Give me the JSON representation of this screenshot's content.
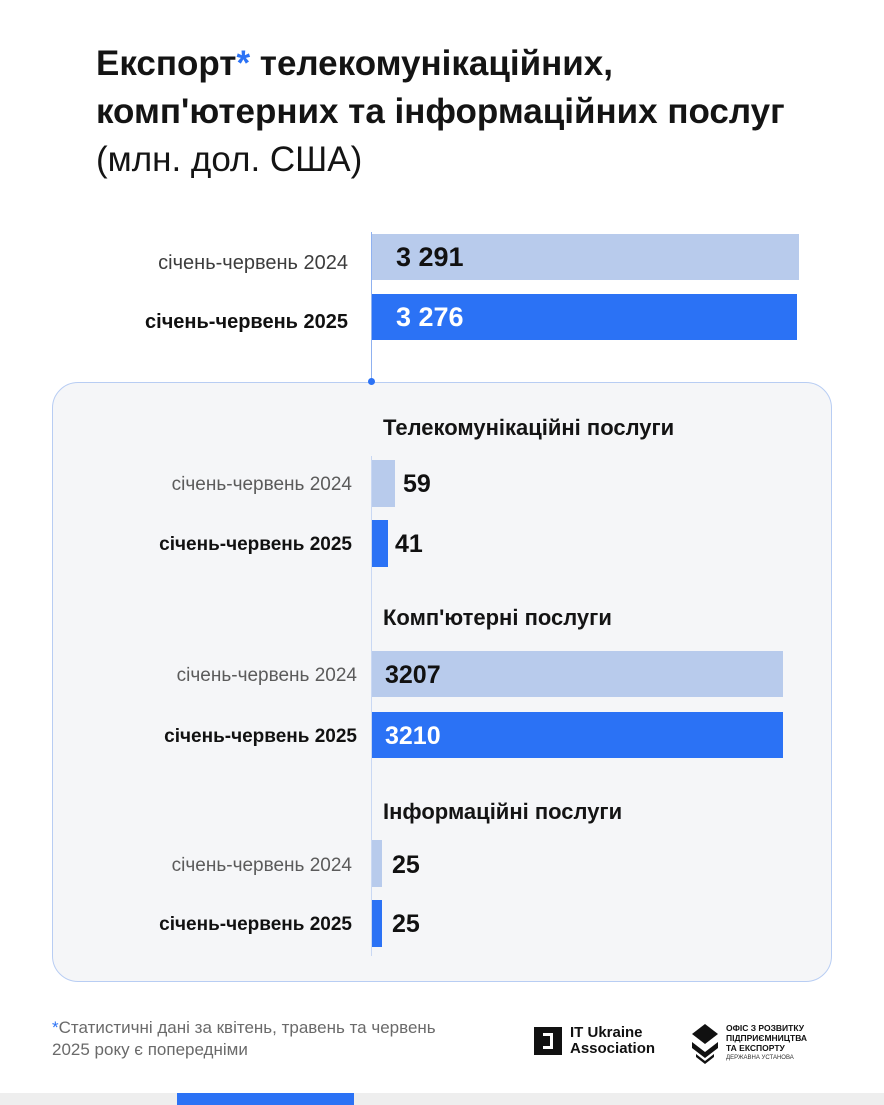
{
  "title": {
    "part1": "Експорт",
    "star": "*",
    "part2": " телекомунікаційних, комп'ютерних та інформаційних послуг",
    "unit": " (млн. дол. США)"
  },
  "chart_data": [
    {
      "type": "bar",
      "title": "Експорт* телекомунікаційних, комп'ютерних та інформаційних послуг (млн. дол. США)",
      "categories": [
        "січень-червень 2024",
        "січень-червень 2025"
      ],
      "values": [
        3291,
        3276
      ],
      "value_labels": [
        "3 291",
        "3 276"
      ],
      "orientation": "horizontal"
    },
    {
      "type": "bar",
      "title": "Телекомунікаційні послуги",
      "categories": [
        "січень-червень 2024",
        "січень-червень 2025"
      ],
      "values": [
        59,
        41
      ],
      "value_labels": [
        "59",
        "41"
      ],
      "orientation": "horizontal"
    },
    {
      "type": "bar",
      "title": "Комп'ютерні послуги",
      "categories": [
        "січень-червень 2024",
        "січень-червень 2025"
      ],
      "values": [
        3207,
        3210
      ],
      "value_labels": [
        "3207",
        "3210"
      ],
      "orientation": "horizontal"
    },
    {
      "type": "bar",
      "title": "Інформаційні послуги",
      "categories": [
        "січень-червень 2024",
        "січень-червень 2025"
      ],
      "values": [
        25,
        25
      ],
      "value_labels": [
        "25",
        "25"
      ],
      "orientation": "horizontal"
    }
  ],
  "colors": {
    "previous_year": "#b8cbec",
    "current_year": "#2b72f5",
    "accent": "#2b72f5"
  },
  "footnote": {
    "star": "*",
    "text": "Статистичні дані за квітень, травень та червень 2025 року є попередніми"
  },
  "logos": {
    "it_ukraine": "IT Ukraine Association",
    "office_line1": "ОФІС З РОЗВИТКУ",
    "office_line2": "ПІДПРИЄМНИЦТВА",
    "office_line3": "ТА ЕКСПОРТУ",
    "office_sub": "ДЕРЖАВНА УСТАНОВА"
  }
}
